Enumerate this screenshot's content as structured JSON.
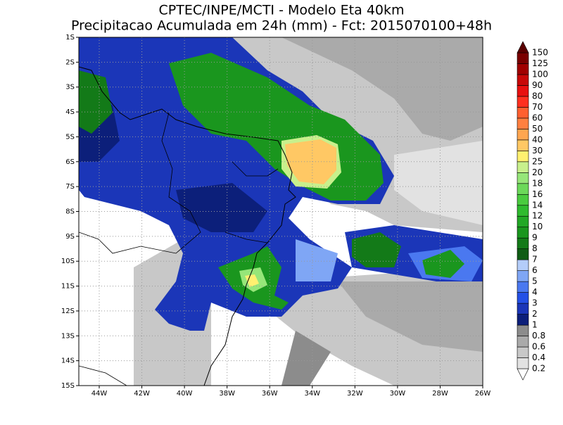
{
  "title": {
    "line1": "CPTEC/INPE/MCTI - Modelo Eta 40km",
    "line2": "Precipitacao Acumulada em 24h (mm) - Fct: 2015070100+48h"
  },
  "map": {
    "latitude_labels": [
      "1S",
      "2S",
      "3S",
      "4S",
      "5S",
      "6S",
      "7S",
      "8S",
      "9S",
      "10S",
      "11S",
      "12S",
      "13S",
      "14S",
      "15S"
    ],
    "longitude_labels": [
      "44W",
      "42W",
      "40W",
      "38W",
      "36W",
      "34W",
      "32W",
      "30W",
      "28W",
      "26W"
    ]
  },
  "colorbar": {
    "labels": [
      "0.2",
      "0.4",
      "0.6",
      "0.8",
      "1",
      "2",
      "3",
      "4",
      "5",
      "6",
      "7",
      "8",
      "9",
      "10",
      "12",
      "14",
      "16",
      "18",
      "20",
      "25",
      "30",
      "40",
      "50",
      "60",
      "70",
      "80",
      "90",
      "100",
      "125",
      "150"
    ],
    "colors": [
      "#ffffff",
      "#e2e2e2",
      "#c8c8c8",
      "#aaaaaa",
      "#8c8c8c",
      "#0c1f7a",
      "#1b36b8",
      "#2450e6",
      "#4a78f0",
      "#7fa6f5",
      "#b4cdfa",
      "#0f5c14",
      "#137a18",
      "#1a961e",
      "#22a826",
      "#2fbb2f",
      "#4acb3f",
      "#6cd95a",
      "#96e679",
      "#c8f08c",
      "#fff070",
      "#ffc864",
      "#ffa650",
      "#ff8040",
      "#ff6030",
      "#ff3020",
      "#e81010",
      "#c80808",
      "#a00000",
      "#7a0000",
      "#5a0000"
    ]
  }
}
